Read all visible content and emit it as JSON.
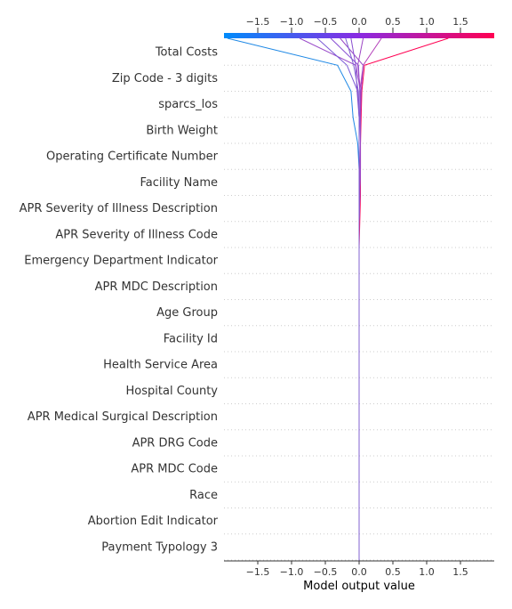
{
  "chart_data": {
    "type": "line",
    "xlabel": "Model output value",
    "xlim": [
      -2.0,
      2.0
    ],
    "xticks": [
      "-1.5",
      "-1.0",
      "-0.5",
      "0.0",
      "0.5",
      "1.0",
      "1.5"
    ],
    "xtick_values": [
      -1.5,
      -1.0,
      -0.5,
      0.0,
      0.5,
      1.0,
      1.5
    ],
    "features": [
      "Total Costs",
      "Zip Code - 3 digits",
      "sparcs_los",
      "Birth Weight",
      "Operating Certificate Number",
      "Facility Name",
      "APR Severity of Illness Description",
      "APR Severity of Illness Code",
      "Emergency Department Indicator",
      "APR MDC Description",
      "Age Group",
      "Facility Id",
      "Health Service Area",
      "Hospital County",
      "APR Medical Surgical Description",
      "APR DRG Code",
      "APR MDC Code",
      "Race",
      "Abortion Edit Indicator",
      "Payment Typology 3"
    ],
    "base_value": 0.0,
    "colorbar": {
      "low": "#008bfb",
      "mid": "#8a2be2",
      "high": "#ff0052"
    },
    "series": [
      {
        "color": "#1e88e5",
        "values": [
          -1.95,
          -0.32,
          -0.12,
          -0.09,
          -0.02,
          0.0,
          0.0,
          0.0,
          0.0,
          0.0,
          0.0,
          0.0,
          0.0,
          0.0,
          0.0,
          0.0,
          0.0,
          0.0,
          0.0,
          0.0,
          0.0
        ]
      },
      {
        "color": "#ff0052",
        "values": [
          1.32,
          0.08,
          0.04,
          0.03,
          0.02,
          0.02,
          0.02,
          0.01,
          0.0,
          0.0,
          0.0,
          0.0,
          0.0,
          0.0,
          0.0,
          0.0,
          0.0,
          0.0,
          0.0,
          0.0,
          0.0
        ]
      },
      {
        "color": "#9b4dca",
        "values": [
          -0.88,
          -0.05,
          0.02,
          0.02,
          0.02,
          0.02,
          0.01,
          0.0,
          0.0,
          0.0,
          0.0,
          0.0,
          0.0,
          0.0,
          0.0,
          0.0,
          0.0,
          0.0,
          0.0,
          0.0,
          0.0
        ]
      },
      {
        "color": "#7c5cd6",
        "values": [
          -0.62,
          -0.18,
          -0.02,
          0.0,
          0.0,
          0.0,
          0.0,
          0.0,
          0.0,
          0.0,
          0.0,
          0.0,
          0.0,
          0.0,
          0.0,
          0.0,
          0.0,
          0.0,
          0.0,
          0.0,
          0.0
        ]
      },
      {
        "color": "#b23bb8",
        "values": [
          0.33,
          0.06,
          0.01,
          0.02,
          0.02,
          0.02,
          0.01,
          0.0,
          0.0,
          0.0,
          0.0,
          0.0,
          0.0,
          0.0,
          0.0,
          0.0,
          0.0,
          0.0,
          0.0,
          0.0,
          0.0
        ]
      },
      {
        "color": "#8850d4",
        "values": [
          -0.42,
          -0.01,
          0.01,
          0.01,
          0.0,
          0.0,
          0.0,
          0.0,
          0.0,
          0.0,
          0.0,
          0.0,
          0.0,
          0.0,
          0.0,
          0.0,
          0.0,
          0.0,
          0.0,
          0.0,
          0.0
        ]
      },
      {
        "color": "#9848c8",
        "values": [
          -0.28,
          0.06,
          0.03,
          0.02,
          0.02,
          0.02,
          0.01,
          0.0,
          0.0,
          0.0,
          0.0,
          0.0,
          0.0,
          0.0,
          0.0,
          0.0,
          0.0,
          0.0,
          0.0,
          0.0,
          0.0
        ]
      },
      {
        "color": "#8a4fd0",
        "values": [
          -0.12,
          -0.05,
          -0.03,
          0.0,
          0.0,
          0.0,
          0.0,
          0.0,
          0.0,
          0.0,
          0.0,
          0.0,
          0.0,
          0.0,
          0.0,
          0.0,
          0.0,
          0.0,
          0.0,
          0.0,
          0.0
        ]
      },
      {
        "color": "#9c46c4",
        "values": [
          0.06,
          -0.02,
          0.02,
          0.02,
          0.02,
          0.01,
          0.01,
          0.0,
          0.0,
          0.0,
          0.0,
          0.0,
          0.0,
          0.0,
          0.0,
          0.0,
          0.0,
          0.0,
          0.0,
          0.0,
          0.0
        ]
      },
      {
        "color": "#8060d0",
        "values": [
          -0.2,
          -0.08,
          -0.01,
          0.0,
          0.0,
          0.0,
          0.0,
          0.0,
          0.0,
          0.0,
          0.0,
          0.0,
          0.0,
          0.0,
          0.0,
          0.0,
          0.0,
          0.0,
          0.0,
          0.0,
          0.0
        ]
      }
    ]
  }
}
